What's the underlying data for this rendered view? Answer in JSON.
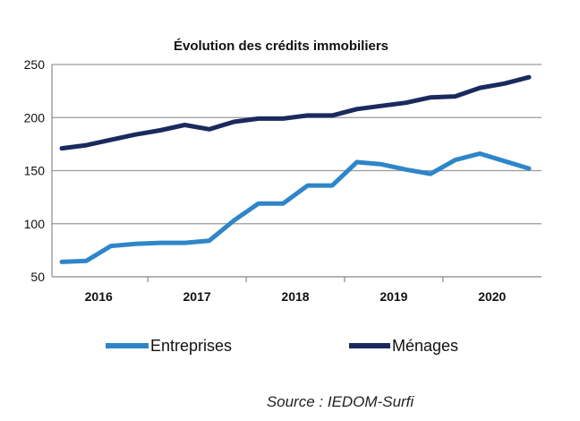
{
  "chart_data": {
    "type": "line",
    "title": "Évolution des crédits immobiliers",
    "xlabel": "",
    "ylabel": "",
    "ylim": [
      50,
      250
    ],
    "yticks": [
      "250",
      "200",
      "150",
      "100",
      "50"
    ],
    "yticks_values": [
      250,
      200,
      150,
      100,
      50
    ],
    "year_labels": [
      "2016",
      "2017",
      "2018",
      "2019",
      "2020"
    ],
    "periods_per_year": 4,
    "grid": true,
    "legend_position": "bottom",
    "series": [
      {
        "name": "Entreprises",
        "color": "#2e86c8",
        "values": [
          64,
          65,
          79,
          81,
          82,
          82,
          84,
          103,
          119,
          119,
          136,
          136,
          158,
          156,
          151,
          147,
          160,
          166,
          159,
          152
        ]
      },
      {
        "name": "Ménages",
        "color": "#1a2a5e",
        "values": [
          171,
          174,
          179,
          184,
          188,
          193,
          189,
          196,
          199,
          199,
          202,
          202,
          208,
          211,
          214,
          219,
          220,
          228,
          232,
          238
        ]
      }
    ]
  },
  "source_note": "Source : IEDOM-Surfi"
}
